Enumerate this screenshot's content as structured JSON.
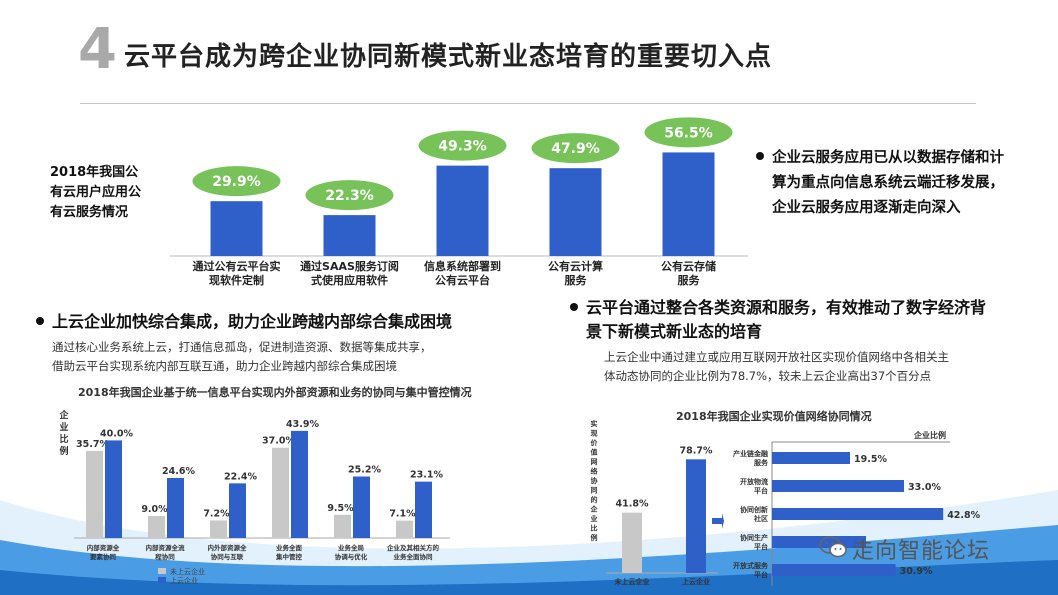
{
  "header": {
    "number": "4",
    "title": "云平台成为跨企业协同新模式新业态培育的重要切入点"
  },
  "colors": {
    "bar_blue": "#2f5fc9",
    "bar_gray": "#c8c8c8",
    "badge_green": "#78c25a",
    "wave_blue": "#2f8ee0"
  },
  "top_left_label": [
    "2018年我国公",
    "有云用户应用公",
    "有云服务情况"
  ],
  "top_right_bullet": [
    "企业云服务应用已从以数据存储和计",
    "算为重点向信息系统云端迁移发展，",
    "企业云服务应用逐渐走向深入"
  ],
  "left_section": {
    "heading": "上云企业加快综合集成，助力企业跨越内部综合集成困境",
    "body": [
      "通过核心业务系统上云，打通信息孤岛，促进制造资源、数据等集成共享，",
      "借助云平台实现系统内部互联互通，助力企业跨越内部综合集成困境"
    ]
  },
  "right_section": {
    "heading": [
      "云平台通过整合各类资源和服务，有效推动了数字经济背",
      "景下新模式新业态的培育"
    ],
    "body": [
      "上云企业中通过建立或应用互联网开放社区实现价值网络中各相关主",
      "体动态协同的企业比例为78.7%，较未上云企业高出37个百分点"
    ]
  },
  "watermark": "走向智能论坛",
  "chart_data": [
    {
      "type": "bar",
      "title": "",
      "categories": [
        [
          "通过公有云平台实",
          "现软件定制"
        ],
        [
          "通过SAAS服务订阅",
          "式使用应用软件"
        ],
        [
          "信息系统部署到",
          "公有云平台"
        ],
        [
          "公有云计算",
          "服务"
        ],
        [
          "公有云存储",
          "服务"
        ]
      ],
      "values": [
        29.9,
        22.3,
        49.3,
        47.9,
        56.5
      ],
      "value_labels": [
        "29.9%",
        "22.3%",
        "49.3%",
        "47.9%",
        "56.5%"
      ],
      "ylim": [
        0,
        60
      ]
    },
    {
      "type": "bar",
      "title": "2018年我国企业基于统一信息平台实现内外部资源和业务的协同与集中管控情况",
      "ylabel": "企业比例",
      "categories": [
        [
          "内部资源全",
          "要素协同"
        ],
        [
          "内部资源全流",
          "程协同"
        ],
        [
          "内外部资源全",
          "协同与互联"
        ],
        [
          "业务全面",
          "集中管控"
        ],
        [
          "业务全局",
          "协调与优化"
        ],
        [
          "企业及其相关方的",
          "业务全面协同"
        ]
      ],
      "series": [
        {
          "values": [
            35.7,
            9.0,
            7.2,
            37.0,
            9.5,
            7.1
          ],
          "labels": [
            "35.7%",
            "9.0%",
            "7.2%",
            "37.0%",
            "9.5%",
            "7.1%"
          ]
        },
        {
          "values": [
            40.0,
            24.6,
            22.4,
            43.9,
            25.2,
            23.1
          ],
          "labels": [
            "40.0%",
            "24.6%",
            "22.4%",
            "43.9%",
            "25.2%",
            "23.1%"
          ]
        }
      ],
      "legend": [
        "未上云企业",
        "上云企业"
      ],
      "ylim": [
        0,
        50
      ]
    },
    {
      "type": "bar",
      "title": "",
      "ylabel": "实现价值网络协同的企业比例",
      "categories": [
        "未上云企业",
        "上云企业"
      ],
      "values": [
        41.8,
        78.7
      ],
      "value_labels": [
        "41.8%",
        "78.7%"
      ],
      "ylim": [
        0,
        90
      ]
    },
    {
      "type": "bar",
      "orientation": "horizontal",
      "title": "2018年我国企业实现价值网络协同情况",
      "xlabel": "企业比例",
      "categories": [
        [
          "产业链金融",
          "服务"
        ],
        [
          "开放物流",
          "平台"
        ],
        [
          "协同创新",
          "社区"
        ],
        [
          "协同生产",
          "平台"
        ],
        [
          "开放式服务",
          "平台"
        ]
      ],
      "values": [
        19.5,
        33.0,
        42.8,
        23.5,
        30.9
      ],
      "value_labels": [
        "19.5%",
        "33.0%",
        "42.8%",
        "",
        "30.9%"
      ],
      "xlim": [
        0,
        50
      ]
    }
  ]
}
